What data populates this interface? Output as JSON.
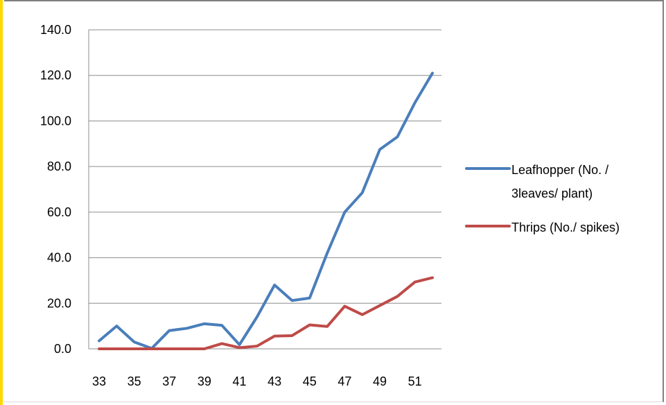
{
  "chart_data": {
    "type": "line",
    "x": [
      33,
      34,
      35,
      36,
      37,
      38,
      39,
      40,
      41,
      42,
      43,
      44,
      45,
      46,
      47,
      48,
      49,
      50,
      51,
      52
    ],
    "x_tick_labels": [
      "33",
      "35",
      "37",
      "39",
      "41",
      "43",
      "45",
      "47",
      "49",
      "51"
    ],
    "ylim": [
      0,
      140
    ],
    "y_tick_labels": [
      "0.0",
      "20.0",
      "40.0",
      "60.0",
      "80.0",
      "100.0",
      "120.0",
      "140.0"
    ],
    "grid": true,
    "legend_position": "right",
    "series": [
      {
        "name": "Leafhopper (No. / 3leaves/ plant)",
        "legend_lines": [
          "Leafhopper (No. /",
          "3leaves/ plant)"
        ],
        "color": "#4a7ebb",
        "values": [
          3.5,
          10.0,
          3.0,
          0.2,
          8.0,
          9.0,
          11.0,
          10.3,
          1.8,
          14.0,
          28.0,
          21.2,
          22.3,
          42.0,
          60.0,
          68.5,
          87.5,
          93.0,
          108.0,
          121.0
        ]
      },
      {
        "name": "Thrips (No./ spikes)",
        "legend_lines": [
          "Thrips (No./ spikes)"
        ],
        "color": "#be4b48",
        "values": [
          0,
          0,
          0,
          0,
          0,
          0,
          0,
          2.3,
          0.5,
          1.2,
          5.6,
          5.8,
          10.5,
          9.8,
          18.7,
          15.0,
          19.0,
          23.0,
          29.3,
          31.2
        ]
      }
    ]
  }
}
